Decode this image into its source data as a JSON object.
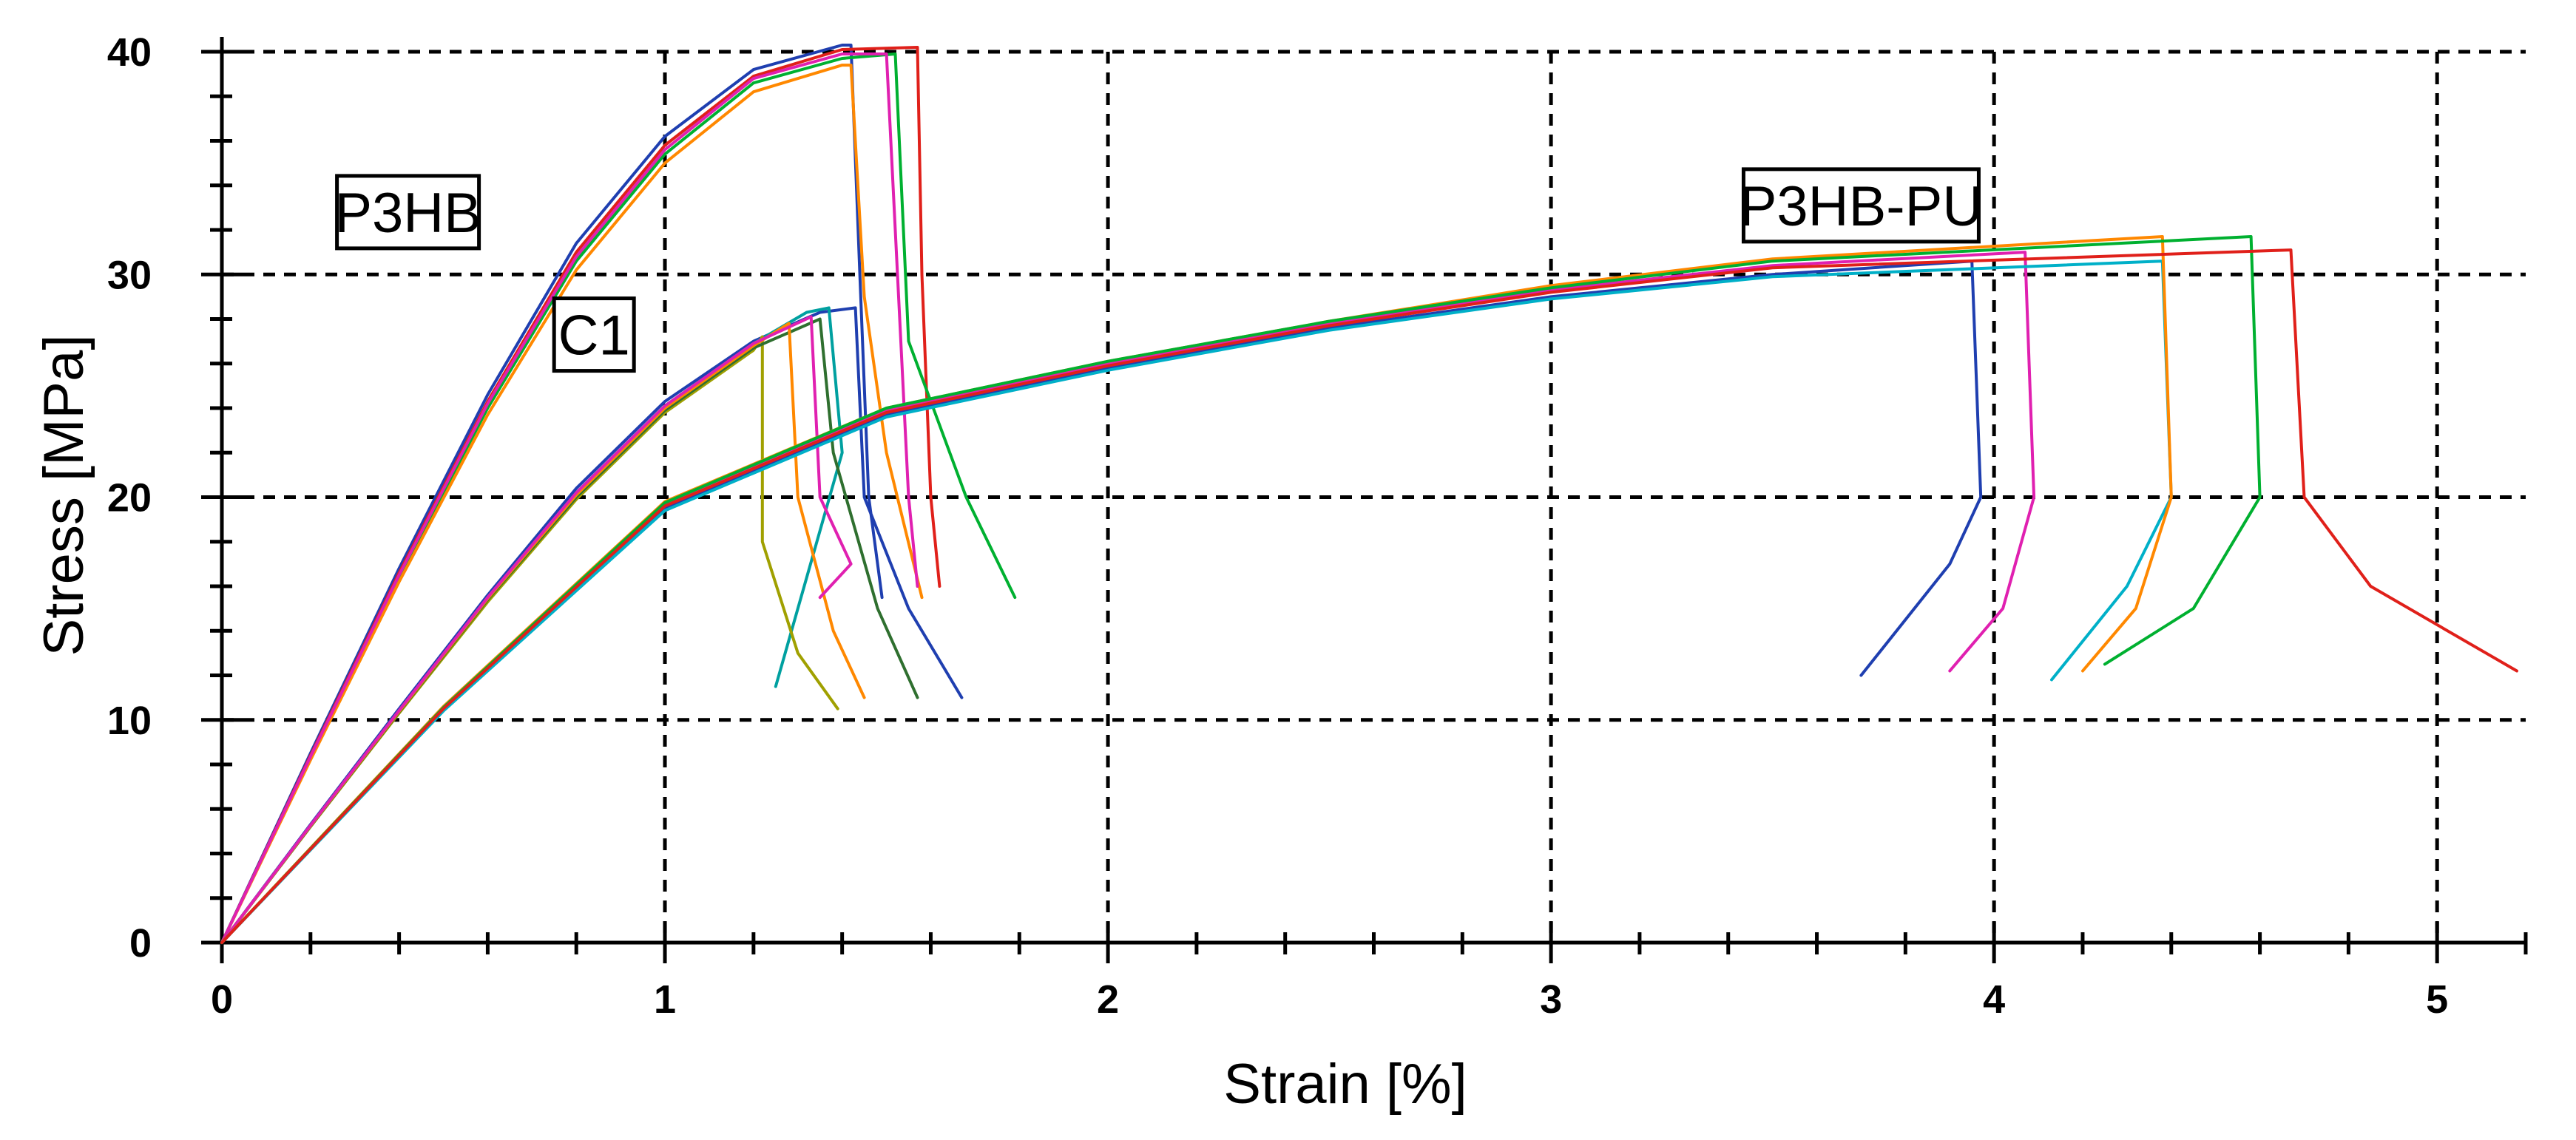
{
  "chart_data": {
    "type": "line",
    "title": "",
    "xlabel": "Strain [%]",
    "ylabel": "Stress [MPa]",
    "xlim": [
      0,
      5.2
    ],
    "ylim": [
      0,
      40
    ],
    "xticks": [
      0,
      1,
      2,
      3,
      4,
      5
    ],
    "yticks": [
      0,
      10,
      20,
      30,
      40
    ],
    "grid": true,
    "grid_style": "dashed",
    "annotations": [
      {
        "text": "P3HB",
        "x": 0.42,
        "y": 32.8
      },
      {
        "text": "C1",
        "x": 0.84,
        "y": 27.3
      },
      {
        "text": "P3HB-PU",
        "x": 3.7,
        "y": 33.1
      }
    ],
    "groups": [
      {
        "label": "P3HB",
        "series": [
          {
            "color": "#1f3fb0",
            "points": [
              [
                0,
                0
              ],
              [
                0.2,
                8.5
              ],
              [
                0.4,
                16.8
              ],
              [
                0.6,
                24.6
              ],
              [
                0.8,
                31.4
              ],
              [
                1.0,
                36.2
              ],
              [
                1.2,
                39.2
              ],
              [
                1.4,
                40.3
              ],
              [
                1.42,
                40.3
              ],
              [
                1.44,
                30
              ],
              [
                1.46,
                20
              ],
              [
                1.49,
                15.5
              ]
            ]
          },
          {
            "color": "#e0201a",
            "points": [
              [
                0,
                0
              ],
              [
                0.2,
                8.4
              ],
              [
                0.4,
                16.6
              ],
              [
                0.6,
                24.3
              ],
              [
                0.8,
                31
              ],
              [
                1.0,
                35.8
              ],
              [
                1.2,
                38.9
              ],
              [
                1.4,
                40.1
              ],
              [
                1.57,
                40.2
              ],
              [
                1.58,
                30
              ],
              [
                1.6,
                20
              ],
              [
                1.62,
                16
              ]
            ]
          },
          {
            "color": "#00b030",
            "points": [
              [
                0,
                0
              ],
              [
                0.2,
                8.3
              ],
              [
                0.4,
                16.4
              ],
              [
                0.6,
                24
              ],
              [
                0.8,
                30.6
              ],
              [
                1.0,
                35.4
              ],
              [
                1.2,
                38.6
              ],
              [
                1.4,
                39.7
              ],
              [
                1.52,
                39.9
              ],
              [
                1.55,
                27
              ],
              [
                1.68,
                20
              ],
              [
                1.79,
                15.5
              ]
            ]
          },
          {
            "color": "#ff8800",
            "points": [
              [
                0,
                0
              ],
              [
                0.2,
                8.2
              ],
              [
                0.4,
                16.2
              ],
              [
                0.6,
                23.7
              ],
              [
                0.8,
                30.2
              ],
              [
                1.0,
                35
              ],
              [
                1.2,
                38.2
              ],
              [
                1.4,
                39.4
              ],
              [
                1.42,
                39.4
              ],
              [
                1.45,
                29
              ],
              [
                1.5,
                22
              ],
              [
                1.58,
                15.5
              ]
            ]
          },
          {
            "color": "#e020b0",
            "points": [
              [
                0,
                0
              ],
              [
                0.2,
                8.35
              ],
              [
                0.4,
                16.5
              ],
              [
                0.6,
                24.2
              ],
              [
                0.8,
                30.8
              ],
              [
                1.0,
                35.6
              ],
              [
                1.2,
                38.8
              ],
              [
                1.4,
                39.9
              ],
              [
                1.5,
                39.9
              ],
              [
                1.53,
                28
              ],
              [
                1.55,
                20
              ],
              [
                1.57,
                16
              ]
            ]
          }
        ]
      },
      {
        "label": "C1",
        "series": [
          {
            "color": "#1f3fb0",
            "points": [
              [
                0,
                0
              ],
              [
                0.2,
                5.3
              ],
              [
                0.4,
                10.5
              ],
              [
                0.6,
                15.6
              ],
              [
                0.8,
                20.4
              ],
              [
                1.0,
                24.3
              ],
              [
                1.2,
                27
              ],
              [
                1.35,
                28.3
              ],
              [
                1.43,
                28.5
              ],
              [
                1.45,
                20
              ],
              [
                1.55,
                15
              ],
              [
                1.67,
                11
              ]
            ]
          },
          {
            "color": "#00a0a0",
            "points": [
              [
                0,
                0
              ],
              [
                0.2,
                5.25
              ],
              [
                0.4,
                10.4
              ],
              [
                0.6,
                15.5
              ],
              [
                0.8,
                20.2
              ],
              [
                1.0,
                24.1
              ],
              [
                1.2,
                26.9
              ],
              [
                1.32,
                28.3
              ],
              [
                1.37,
                28.5
              ],
              [
                1.4,
                22
              ],
              [
                1.3,
                15
              ],
              [
                1.25,
                11.5
              ]
            ]
          },
          {
            "color": "#a0a000",
            "points": [
              [
                0,
                0
              ],
              [
                0.2,
                5.2
              ],
              [
                0.4,
                10.3
              ],
              [
                0.6,
                15.3
              ],
              [
                0.8,
                19.9
              ],
              [
                1.0,
                23.8
              ],
              [
                1.2,
                26.6
              ],
              [
                1.22,
                27.2
              ],
              [
                1.22,
                18
              ],
              [
                1.3,
                13
              ],
              [
                1.39,
                10.5
              ]
            ]
          },
          {
            "color": "#2f6f2f",
            "points": [
              [
                0,
                0
              ],
              [
                0.2,
                5.22
              ],
              [
                0.4,
                10.35
              ],
              [
                0.6,
                15.4
              ],
              [
                0.8,
                20
              ],
              [
                1.0,
                23.9
              ],
              [
                1.2,
                26.7
              ],
              [
                1.35,
                28
              ],
              [
                1.38,
                22
              ],
              [
                1.48,
                15
              ],
              [
                1.57,
                11
              ]
            ]
          },
          {
            "color": "#ff8800",
            "points": [
              [
                0,
                0
              ],
              [
                0.2,
                5.24
              ],
              [
                0.4,
                10.38
              ],
              [
                0.6,
                15.45
              ],
              [
                0.8,
                20.1
              ],
              [
                1.0,
                24
              ],
              [
                1.2,
                26.8
              ],
              [
                1.28,
                27.8
              ],
              [
                1.3,
                20
              ],
              [
                1.38,
                14
              ],
              [
                1.45,
                11
              ]
            ]
          },
          {
            "color": "#e020b0",
            "points": [
              [
                0,
                0
              ],
              [
                0.2,
                5.26
              ],
              [
                0.4,
                10.42
              ],
              [
                0.6,
                15.5
              ],
              [
                0.8,
                20.2
              ],
              [
                1.0,
                24.1
              ],
              [
                1.2,
                26.9
              ],
              [
                1.33,
                28.1
              ],
              [
                1.35,
                20
              ],
              [
                1.42,
                17
              ],
              [
                1.35,
                15.5
              ]
            ]
          }
        ]
      },
      {
        "label": "P3HB-PU",
        "series": [
          {
            "color": "#1f3fb0",
            "points": [
              [
                0,
                0
              ],
              [
                0.5,
                10.5
              ],
              [
                1.0,
                19.5
              ],
              [
                1.5,
                23.7
              ],
              [
                2.0,
                25.8
              ],
              [
                2.5,
                27.6
              ],
              [
                3.0,
                29
              ],
              [
                3.5,
                30
              ],
              [
                3.95,
                30.6
              ],
              [
                3.97,
                20
              ],
              [
                3.9,
                17
              ],
              [
                3.7,
                12
              ]
            ]
          },
          {
            "color": "#e020b0",
            "points": [
              [
                0,
                0
              ],
              [
                0.5,
                10.5
              ],
              [
                1.0,
                19.7
              ],
              [
                1.5,
                23.9
              ],
              [
                2.0,
                26
              ],
              [
                2.5,
                27.8
              ],
              [
                3.0,
                29.3
              ],
              [
                3.5,
                30.4
              ],
              [
                4.07,
                31
              ],
              [
                4.09,
                20
              ],
              [
                4.02,
                15
              ],
              [
                3.9,
                12.2
              ]
            ]
          },
          {
            "color": "#00b0c8",
            "points": [
              [
                0,
                0
              ],
              [
                0.5,
                10.4
              ],
              [
                1.0,
                19.4
              ],
              [
                1.5,
                23.6
              ],
              [
                2.0,
                25.7
              ],
              [
                2.5,
                27.5
              ],
              [
                3.0,
                28.9
              ],
              [
                3.5,
                29.9
              ],
              [
                4.38,
                30.6
              ],
              [
                4.4,
                20
              ],
              [
                4.3,
                16
              ],
              [
                4.13,
                11.8
              ]
            ]
          },
          {
            "color": "#ff8800",
            "points": [
              [
                0,
                0
              ],
              [
                0.5,
                10.6
              ],
              [
                1.0,
                19.8
              ],
              [
                1.5,
                24
              ],
              [
                2.0,
                26.1
              ],
              [
                2.5,
                27.9
              ],
              [
                3.0,
                29.5
              ],
              [
                3.5,
                30.7
              ],
              [
                4.38,
                31.7
              ],
              [
                4.4,
                20
              ],
              [
                4.32,
                15
              ],
              [
                4.2,
                12.2
              ]
            ]
          },
          {
            "color": "#00b030",
            "points": [
              [
                0,
                0
              ],
              [
                0.5,
                10.55
              ],
              [
                1.0,
                19.75
              ],
              [
                1.5,
                24
              ],
              [
                2.0,
                26.1
              ],
              [
                2.5,
                27.9
              ],
              [
                3.0,
                29.4
              ],
              [
                3.5,
                30.6
              ],
              [
                4.58,
                31.7
              ],
              [
                4.6,
                20
              ],
              [
                4.45,
                15
              ],
              [
                4.25,
                12.5
              ]
            ]
          },
          {
            "color": "#e0201a",
            "points": [
              [
                0,
                0
              ],
              [
                0.5,
                10.5
              ],
              [
                1.0,
                19.6
              ],
              [
                1.5,
                23.8
              ],
              [
                2.0,
                25.9
              ],
              [
                2.5,
                27.7
              ],
              [
                3.0,
                29.2
              ],
              [
                3.5,
                30.3
              ],
              [
                4.67,
                31.1
              ],
              [
                4.7,
                20
              ],
              [
                4.85,
                16
              ],
              [
                5.18,
                12.2
              ]
            ]
          }
        ]
      }
    ]
  }
}
